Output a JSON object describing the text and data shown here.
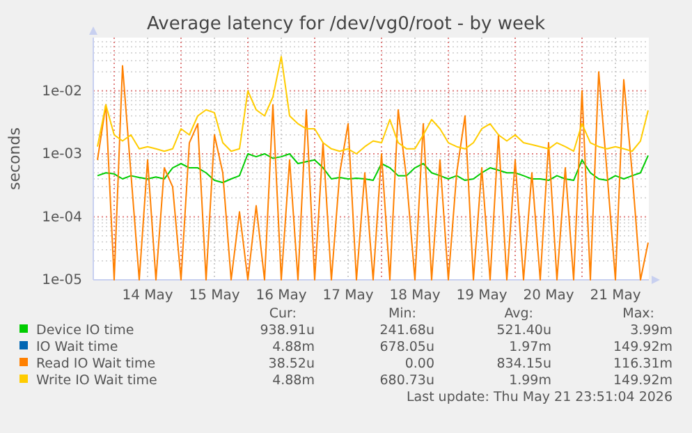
{
  "chart_data": {
    "type": "line",
    "title": "Average latency for /dev/vg0/root - by week",
    "ylabel": "seconds",
    "log": true,
    "grid": true,
    "legend": "bottom",
    "line_style": "solid",
    "marker": "none",
    "xlim": [
      "2026-05-13T16:30",
      "2026-05-22T00:00"
    ],
    "xticks": [
      {
        "value": "2026-05-14T00:00",
        "label": null
      },
      {
        "value": "2026-05-14T12:00",
        "label": "14 May"
      },
      {
        "value": "2026-05-15T00:00",
        "label": null
      },
      {
        "value": "2026-05-15T12:00",
        "label": "15 May"
      },
      {
        "value": "2026-05-16T00:00",
        "label": null
      },
      {
        "value": "2026-05-16T12:00",
        "label": "16 May"
      },
      {
        "value": "2026-05-17T00:00",
        "label": null
      },
      {
        "value": "2026-05-17T12:00",
        "label": "17 May"
      },
      {
        "value": "2026-05-18T00:00",
        "label": null
      },
      {
        "value": "2026-05-18T12:00",
        "label": "18 May"
      },
      {
        "value": "2026-05-19T00:00",
        "label": null
      },
      {
        "value": "2026-05-19T12:00",
        "label": "19 May"
      },
      {
        "value": "2026-05-20T00:00",
        "label": null
      },
      {
        "value": "2026-05-20T12:00",
        "label": "20 May"
      },
      {
        "value": "2026-05-21T00:00",
        "label": null
      },
      {
        "value": "2026-05-21T12:00",
        "label": "21 May"
      }
    ],
    "ylim": [
      1e-05,
      0.07
    ],
    "yticks": [
      {
        "value": 1e-05,
        "label": "1e-05"
      },
      {
        "value": 0.0001,
        "label": "1e-04"
      },
      {
        "value": 0.001,
        "label": "1e-03"
      },
      {
        "value": 0.01,
        "label": "1e-02"
      }
    ],
    "x": [
      "2026-05-13T18:00",
      "2026-05-13T21:00",
      "2026-05-14T00:00",
      "2026-05-14T03:00",
      "2026-05-14T06:00",
      "2026-05-14T09:00",
      "2026-05-14T12:00",
      "2026-05-14T15:00",
      "2026-05-14T18:00",
      "2026-05-14T21:00",
      "2026-05-15T00:00",
      "2026-05-15T03:00",
      "2026-05-15T06:00",
      "2026-05-15T09:00",
      "2026-05-15T12:00",
      "2026-05-15T15:00",
      "2026-05-15T18:00",
      "2026-05-15T21:00",
      "2026-05-16T00:00",
      "2026-05-16T03:00",
      "2026-05-16T06:00",
      "2026-05-16T09:00",
      "2026-05-16T12:00",
      "2026-05-16T15:00",
      "2026-05-16T18:00",
      "2026-05-16T21:00",
      "2026-05-17T00:00",
      "2026-05-17T03:00",
      "2026-05-17T06:00",
      "2026-05-17T09:00",
      "2026-05-17T12:00",
      "2026-05-17T15:00",
      "2026-05-17T18:00",
      "2026-05-17T21:00",
      "2026-05-18T00:00",
      "2026-05-18T03:00",
      "2026-05-18T06:00",
      "2026-05-18T09:00",
      "2026-05-18T12:00",
      "2026-05-18T15:00",
      "2026-05-18T18:00",
      "2026-05-18T21:00",
      "2026-05-19T00:00",
      "2026-05-19T03:00",
      "2026-05-19T06:00",
      "2026-05-19T09:00",
      "2026-05-19T12:00",
      "2026-05-19T15:00",
      "2026-05-19T18:00",
      "2026-05-19T21:00",
      "2026-05-20T00:00",
      "2026-05-20T03:00",
      "2026-05-20T06:00",
      "2026-05-20T09:00",
      "2026-05-20T12:00",
      "2026-05-20T15:00",
      "2026-05-20T18:00",
      "2026-05-20T21:00",
      "2026-05-21T00:00",
      "2026-05-21T03:00",
      "2026-05-21T06:00",
      "2026-05-21T09:00",
      "2026-05-21T12:00",
      "2026-05-21T15:00",
      "2026-05-21T18:00",
      "2026-05-21T21:00",
      "2026-05-21T23:45"
    ],
    "series": [
      {
        "name": "Device IO time",
        "color": "#00cc00",
        "values": [
          0.00045,
          0.0005,
          0.00048,
          0.0004,
          0.00045,
          0.00042,
          0.0004,
          0.00043,
          0.0004,
          0.0006,
          0.0007,
          0.0006,
          0.0006,
          0.0005,
          0.00038,
          0.00035,
          0.0004,
          0.00045,
          0.001,
          0.0009,
          0.001,
          0.00085,
          0.0009,
          0.001,
          0.0007,
          0.00075,
          0.0008,
          0.0006,
          0.0004,
          0.00042,
          0.0004,
          0.00041,
          0.0004,
          0.00038,
          0.0007,
          0.0006,
          0.00045,
          0.00045,
          0.0006,
          0.0007,
          0.0005,
          0.00045,
          0.0004,
          0.00045,
          0.00038,
          0.0004,
          0.0005,
          0.0006,
          0.00055,
          0.0005,
          0.0005,
          0.00045,
          0.0004,
          0.0004,
          0.00038,
          0.00045,
          0.0004,
          0.00038,
          0.0008,
          0.0005,
          0.0004,
          0.00038,
          0.00045,
          0.0004,
          0.00045,
          0.0005,
          0.00094
        ]
      },
      {
        "name": "IO Wait time",
        "color": "#0066b3",
        "values": [
          null,
          null,
          null,
          null,
          null,
          null,
          null,
          null,
          null,
          null,
          null,
          null,
          null,
          null,
          null,
          null,
          null,
          null,
          null,
          null,
          null,
          null,
          null,
          null,
          null,
          null,
          null,
          null,
          null,
          null,
          null,
          null,
          null,
          null,
          null,
          null,
          null,
          null,
          null,
          null,
          null,
          null,
          null,
          null,
          null,
          null,
          null,
          null,
          null,
          null,
          null,
          null,
          null,
          null,
          null,
          null,
          null,
          null,
          null,
          null,
          null,
          null,
          null,
          null,
          null,
          null,
          null
        ]
      },
      {
        "name": "Read IO Wait time",
        "color": "#ff8000",
        "values": [
          0.0008,
          0.006,
          1e-05,
          0.025,
          0.0005,
          1e-05,
          0.0008,
          1e-05,
          0.0006,
          0.0003,
          1e-05,
          0.0015,
          0.003,
          1e-05,
          0.002,
          0.0005,
          1e-05,
          0.00012,
          1e-05,
          0.00015,
          1e-05,
          0.006,
          1e-05,
          0.0008,
          1e-05,
          0.005,
          1e-05,
          0.0015,
          1e-05,
          0.0005,
          0.003,
          1e-05,
          0.0005,
          1e-05,
          0.001,
          1e-05,
          0.005,
          0.0004,
          1e-05,
          0.003,
          1e-05,
          0.0008,
          1e-05,
          0.0005,
          0.004,
          1e-05,
          0.0006,
          1e-05,
          0.002,
          1e-05,
          0.0008,
          1e-05,
          0.0005,
          1e-05,
          0.0015,
          1e-05,
          0.0006,
          1e-05,
          0.01,
          1e-05,
          0.02,
          0.0005,
          1e-05,
          0.015,
          0.0005,
          1e-05,
          3.9e-05
        ]
      },
      {
        "name": "Write IO Wait time",
        "color": "#ffcc00",
        "values": [
          0.0013,
          0.006,
          0.002,
          0.0016,
          0.002,
          0.0012,
          0.0013,
          0.0012,
          0.0011,
          0.0012,
          0.0025,
          0.002,
          0.004,
          0.005,
          0.0045,
          0.0015,
          0.0011,
          0.0012,
          0.01,
          0.005,
          0.004,
          0.008,
          0.035,
          0.004,
          0.003,
          0.0025,
          0.0025,
          0.0015,
          0.0012,
          0.0011,
          0.0012,
          0.001,
          0.0013,
          0.0016,
          0.0015,
          0.0035,
          0.0015,
          0.0012,
          0.0012,
          0.002,
          0.0035,
          0.0025,
          0.0015,
          0.0013,
          0.0012,
          0.0015,
          0.0025,
          0.003,
          0.002,
          0.0016,
          0.002,
          0.0015,
          0.0014,
          0.0013,
          0.0012,
          0.0015,
          0.0013,
          0.0011,
          0.003,
          0.0015,
          0.0013,
          0.0012,
          0.0013,
          0.0012,
          0.0011,
          0.0016,
          0.0049
        ]
      }
    ],
    "annotations": [
      "Cur:",
      "Min:",
      "Avg:",
      "Max:",
      "938.91u",
      "241.68u",
      "521.40u",
      "3.99m",
      "4.88m",
      "678.05u",
      "1.97m",
      "149.92m",
      "38.52u",
      "0.00",
      "834.15u",
      "116.31m",
      "4.88m",
      "680.73u",
      "1.99m",
      "149.92m",
      "Last update: Thu May 21 23:51:04 2026"
    ]
  }
}
